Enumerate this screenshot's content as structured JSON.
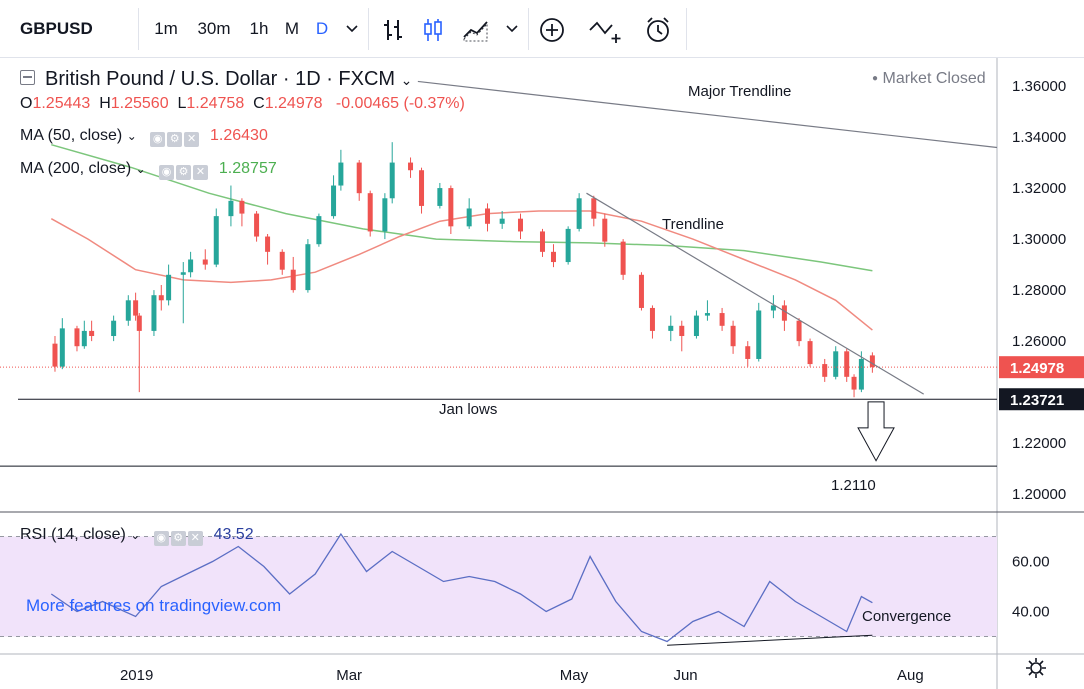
{
  "toolbar": {
    "symbol": "GBPUSD",
    "intervals": [
      "1m",
      "30m",
      "1h",
      "M",
      "D"
    ],
    "active_interval": "D",
    "icons": [
      "chevron-down-icon",
      "bar-chart-icon",
      "candlestick-icon",
      "area-chart-icon",
      "chevron-down-icon",
      "plus-circle-icon",
      "compare-icon",
      "alert-icon"
    ]
  },
  "colors": {
    "up": "#26a69a",
    "down": "#ef5350",
    "ma50": "#f08a80",
    "ma200": "#7cc67c",
    "rsi_line": "#5b6ec4",
    "rsi_band": "#f1e3fa",
    "active_interval": "#2962ff"
  },
  "legend": {
    "title": "British Pound / U.S. Dollar · 1D · FXCM",
    "ohlc": {
      "o_label": "O",
      "o": "1.25443",
      "h_label": "H",
      "h": "1.25560",
      "l_label": "L",
      "l": "1.24758",
      "c_label": "C",
      "c": "1.24978",
      "change": "-0.00465 (-0.37%)"
    },
    "ma50": {
      "label": "MA (50, close)",
      "value": "1.26430"
    },
    "ma200": {
      "label": "MA (200, close)",
      "value": "1.28757"
    },
    "market_status": "Market Closed",
    "rsi": {
      "label": "RSI (14, close)",
      "value": "43.52"
    },
    "watermark": "More features on tradingview.com"
  },
  "chart_data": {
    "type": "candlestick",
    "title": "British Pound / U.S. Dollar · 1D · FXCM",
    "x_tick_labels": [
      "2019",
      "Mar",
      "May",
      "Jun",
      "Aug"
    ],
    "y_tick_labels": [
      "1.36000",
      "1.34000",
      "1.32000",
      "1.30000",
      "1.28000",
      "1.26000",
      "1.22000",
      "1.20000"
    ],
    "ylim": [
      1.193,
      1.371
    ],
    "price_labels": {
      "last": "1.24978",
      "jan_low": "1.23721"
    },
    "candles_ohlc": [
      [
        "2018-12-11",
        1.259,
        1.262,
        1.248,
        1.25
      ],
      [
        "2018-12-13",
        1.25,
        1.269,
        1.249,
        1.265
      ],
      [
        "2018-12-17",
        1.265,
        1.266,
        1.256,
        1.258
      ],
      [
        "2018-12-19",
        1.258,
        1.268,
        1.257,
        1.264
      ],
      [
        "2018-12-21",
        1.264,
        1.268,
        1.26,
        1.262
      ],
      [
        "2018-12-27",
        1.262,
        1.27,
        1.26,
        1.268
      ],
      [
        "2018-12-31",
        1.268,
        1.278,
        1.266,
        1.276
      ],
      [
        "2019-01-02",
        1.276,
        1.279,
        1.268,
        1.27
      ],
      [
        "2019-01-03",
        1.27,
        1.271,
        1.24,
        1.264
      ],
      [
        "2019-01-07",
        1.264,
        1.28,
        1.262,
        1.278
      ],
      [
        "2019-01-09",
        1.278,
        1.282,
        1.272,
        1.276
      ],
      [
        "2019-01-11",
        1.276,
        1.29,
        1.274,
        1.286
      ],
      [
        "2019-01-15",
        1.286,
        1.291,
        1.267,
        1.287
      ],
      [
        "2019-01-17",
        1.287,
        1.295,
        1.285,
        1.292
      ],
      [
        "2019-01-21",
        1.292,
        1.296,
        1.288,
        1.29
      ],
      [
        "2019-01-24",
        1.29,
        1.312,
        1.289,
        1.309
      ],
      [
        "2019-01-28",
        1.309,
        1.321,
        1.305,
        1.315
      ],
      [
        "2019-01-31",
        1.315,
        1.316,
        1.305,
        1.31
      ],
      [
        "2019-02-04",
        1.31,
        1.311,
        1.299,
        1.301
      ],
      [
        "2019-02-07",
        1.301,
        1.302,
        1.29,
        1.295
      ],
      [
        "2019-02-11",
        1.295,
        1.296,
        1.286,
        1.288
      ],
      [
        "2019-02-14",
        1.288,
        1.293,
        1.279,
        1.28
      ],
      [
        "2019-02-18",
        1.28,
        1.3,
        1.279,
        1.298
      ],
      [
        "2019-02-21",
        1.298,
        1.31,
        1.297,
        1.309
      ],
      [
        "2019-02-25",
        1.309,
        1.325,
        1.308,
        1.321
      ],
      [
        "2019-02-27",
        1.321,
        1.335,
        1.319,
        1.33
      ],
      [
        "2019-03-04",
        1.33,
        1.331,
        1.315,
        1.318
      ],
      [
        "2019-03-07",
        1.318,
        1.319,
        1.301,
        1.303
      ],
      [
        "2019-03-11",
        1.303,
        1.318,
        1.3,
        1.316
      ],
      [
        "2019-03-13",
        1.316,
        1.338,
        1.314,
        1.33
      ],
      [
        "2019-03-18",
        1.33,
        1.332,
        1.324,
        1.327
      ],
      [
        "2019-03-21",
        1.327,
        1.328,
        1.31,
        1.313
      ],
      [
        "2019-03-26",
        1.313,
        1.322,
        1.312,
        1.32
      ],
      [
        "2019-03-29",
        1.32,
        1.321,
        1.302,
        1.305
      ],
      [
        "2019-04-03",
        1.305,
        1.316,
        1.304,
        1.312
      ],
      [
        "2019-04-08",
        1.312,
        1.314,
        1.303,
        1.306
      ],
      [
        "2019-04-12",
        1.306,
        1.311,
        1.304,
        1.308
      ],
      [
        "2019-04-17",
        1.308,
        1.31,
        1.3,
        1.303
      ],
      [
        "2019-04-23",
        1.303,
        1.304,
        1.293,
        1.295
      ],
      [
        "2019-04-26",
        1.295,
        1.298,
        1.289,
        1.291
      ],
      [
        "2019-04-30",
        1.291,
        1.305,
        1.29,
        1.304
      ],
      [
        "2019-05-03",
        1.304,
        1.318,
        1.303,
        1.316
      ],
      [
        "2019-05-07",
        1.316,
        1.317,
        1.305,
        1.308
      ],
      [
        "2019-05-10",
        1.308,
        1.31,
        1.297,
        1.299
      ],
      [
        "2019-05-15",
        1.299,
        1.3,
        1.284,
        1.286
      ],
      [
        "2019-05-20",
        1.286,
        1.287,
        1.272,
        1.273
      ],
      [
        "2019-05-23",
        1.273,
        1.274,
        1.261,
        1.264
      ],
      [
        "2019-05-28",
        1.264,
        1.27,
        1.26,
        1.266
      ],
      [
        "2019-05-31",
        1.266,
        1.268,
        1.256,
        1.262
      ],
      [
        "2019-06-04",
        1.262,
        1.272,
        1.261,
        1.27
      ],
      [
        "2019-06-07",
        1.27,
        1.276,
        1.268,
        1.271
      ],
      [
        "2019-06-11",
        1.271,
        1.273,
        1.264,
        1.266
      ],
      [
        "2019-06-14",
        1.266,
        1.268,
        1.255,
        1.258
      ],
      [
        "2019-06-18",
        1.258,
        1.26,
        1.25,
        1.253
      ],
      [
        "2019-06-21",
        1.253,
        1.275,
        1.252,
        1.272
      ],
      [
        "2019-06-25",
        1.272,
        1.278,
        1.269,
        1.274
      ],
      [
        "2019-06-28",
        1.274,
        1.276,
        1.264,
        1.268
      ],
      [
        "2019-07-02",
        1.268,
        1.269,
        1.258,
        1.26
      ],
      [
        "2019-07-05",
        1.26,
        1.261,
        1.25,
        1.251
      ],
      [
        "2019-07-09",
        1.251,
        1.253,
        1.244,
        1.246
      ],
      [
        "2019-07-12",
        1.246,
        1.258,
        1.245,
        1.256
      ],
      [
        "2019-07-15",
        1.256,
        1.257,
        1.244,
        1.246
      ],
      [
        "2019-07-17",
        1.246,
        1.247,
        1.238,
        1.241
      ],
      [
        "2019-07-19",
        1.241,
        1.256,
        1.24,
        1.253
      ],
      [
        "2019-07-22",
        1.2544,
        1.2556,
        1.2476,
        1.2498
      ]
    ],
    "ma50": [
      [
        "2018-12-10",
        1.308
      ],
      [
        "2018-12-20",
        1.3
      ],
      [
        "2019-01-02",
        1.288
      ],
      [
        "2019-01-15",
        1.284
      ],
      [
        "2019-01-28",
        1.283
      ],
      [
        "2019-02-08",
        1.284
      ],
      [
        "2019-02-20",
        1.287
      ],
      [
        "2019-03-04",
        1.294
      ],
      [
        "2019-03-15",
        1.301
      ],
      [
        "2019-03-26",
        1.307
      ],
      [
        "2019-04-08",
        1.31
      ],
      [
        "2019-04-22",
        1.311
      ],
      [
        "2019-05-06",
        1.311
      ],
      [
        "2019-05-20",
        1.307
      ],
      [
        "2019-06-03",
        1.3
      ],
      [
        "2019-06-17",
        1.292
      ],
      [
        "2019-07-01",
        1.284
      ],
      [
        "2019-07-12",
        1.276
      ],
      [
        "2019-07-22",
        1.2643
      ]
    ],
    "ma200": [
      [
        "2018-12-10",
        1.337
      ],
      [
        "2019-01-01",
        1.328
      ],
      [
        "2019-01-22",
        1.318
      ],
      [
        "2019-02-12",
        1.31
      ],
      [
        "2019-03-05",
        1.304
      ],
      [
        "2019-03-25",
        1.3
      ],
      [
        "2019-04-15",
        1.299
      ],
      [
        "2019-05-06",
        1.2985
      ],
      [
        "2019-05-27",
        1.2975
      ],
      [
        "2019-06-17",
        1.2955
      ],
      [
        "2019-07-08",
        1.291
      ],
      [
        "2019-07-22",
        1.2876
      ]
    ],
    "rsi": {
      "y_tick_labels": [
        "60.00",
        "40.00"
      ],
      "ylim": [
        23,
        79
      ],
      "bands": [
        70,
        30
      ],
      "values": [
        [
          "2018-12-10",
          47
        ],
        [
          "2018-12-17",
          40
        ],
        [
          "2018-12-24",
          44
        ],
        [
          "2019-01-02",
          38
        ],
        [
          "2019-01-09",
          50
        ],
        [
          "2019-01-16",
          55
        ],
        [
          "2019-01-23",
          60
        ],
        [
          "2019-01-30",
          66
        ],
        [
          "2019-02-06",
          58
        ],
        [
          "2019-02-13",
          47
        ],
        [
          "2019-02-20",
          55
        ],
        [
          "2019-02-27",
          71
        ],
        [
          "2019-03-06",
          56
        ],
        [
          "2019-03-13",
          64
        ],
        [
          "2019-03-20",
          58
        ],
        [
          "2019-03-27",
          52
        ],
        [
          "2019-04-03",
          54
        ],
        [
          "2019-04-10",
          52
        ],
        [
          "2019-04-17",
          47
        ],
        [
          "2019-04-24",
          40
        ],
        [
          "2019-05-01",
          45
        ],
        [
          "2019-05-06",
          62
        ],
        [
          "2019-05-13",
          44
        ],
        [
          "2019-05-20",
          32
        ],
        [
          "2019-05-27",
          28
        ],
        [
          "2019-06-03",
          36
        ],
        [
          "2019-06-10",
          40
        ],
        [
          "2019-06-17",
          34
        ],
        [
          "2019-06-24",
          52
        ],
        [
          "2019-07-01",
          44
        ],
        [
          "2019-07-08",
          38
        ],
        [
          "2019-07-15",
          32
        ],
        [
          "2019-07-19",
          46
        ],
        [
          "2019-07-22",
          43.52
        ]
      ]
    },
    "annotations": {
      "major_trendline": "Major Trendline",
      "trendline": "Trendline",
      "jan_lows": "Jan lows",
      "target": "1.2110",
      "convergence": "Convergence"
    }
  }
}
